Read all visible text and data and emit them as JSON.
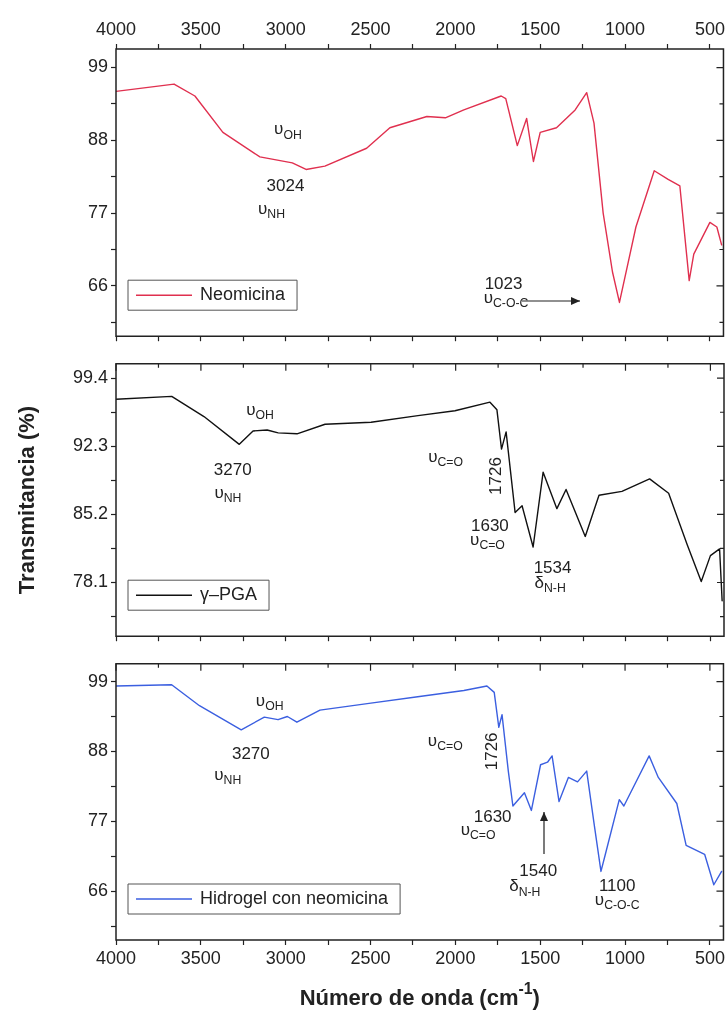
{
  "chart_data": [
    {
      "type": "line",
      "tick_labels": "y",
      "legend": "bottom left",
      "marker": "none",
      "xlim": [
        4000,
        420
      ],
      "x2lim": [
        4000,
        420
      ],
      "xticks": [
        4000,
        {
          "value": 3750,
          "label": null
        },
        3500,
        {
          "value": 3250,
          "label": null
        },
        3000,
        {
          "value": 2750,
          "label": null
        },
        2500,
        {
          "value": 2250,
          "label": null
        },
        2000,
        {
          "value": 1750,
          "label": null
        },
        1500,
        {
          "value": 1250,
          "label": null
        },
        1000,
        {
          "value": 750,
          "label": null
        },
        500
      ],
      "x2ticks": [
        4000,
        {
          "value": 3750,
          "label": null
        },
        3500,
        {
          "value": 3250,
          "label": null
        },
        3000,
        {
          "value": 2750,
          "label": null
        },
        2500,
        {
          "value": 2250,
          "label": null
        },
        2000,
        {
          "value": 1750,
          "label": null
        },
        1500,
        {
          "value": 1250,
          "label": null
        },
        1000,
        {
          "value": 750,
          "label": null
        },
        500
      ],
      "ylim": [
        58.4,
        101.8
      ],
      "yticks": [
        {
          "value": 60.5,
          "label": null
        },
        66,
        {
          "value": 71.5,
          "label": null
        },
        77,
        {
          "value": 82.5,
          "label": null
        },
        88,
        {
          "value": 93.5,
          "label": null
        },
        99
      ],
      "x": [
        4000,
        3658,
        3535,
        3370,
        3152,
        2961,
        2880,
        2769,
        2523,
        2386,
        2168,
        2059,
        1950,
        1730,
        1703,
        1635,
        1580,
        1540,
        1500,
        1404,
        1294,
        1226,
        1183,
        1129,
        1074,
        1033,
        936,
        828,
        746,
        677,
        622,
        595,
        500,
        459,
        431
      ],
      "series": [
        {
          "name": "Neomicina",
          "color": "#e0304f",
          "values": [
            95.4,
            96.5,
            94.7,
            89.2,
            85.5,
            84.6,
            83.6,
            84.1,
            86.8,
            89.9,
            91.6,
            91.4,
            92.6,
            94.7,
            94.3,
            87.2,
            91.3,
            84.8,
            89.2,
            89.9,
            92.6,
            95.2,
            90.6,
            77.0,
            68.1,
            63.5,
            74.9,
            83.4,
            82.1,
            81.1,
            66.8,
            70.8,
            75.6,
            74.9,
            72.2
          ]
        }
      ],
      "annotations": [
        "υ$_{OH}$",
        "3024",
        "υ$_{NH}$",
        "1023",
        "υ$_{C-O-C}$"
      ]
    },
    {
      "type": "line",
      "tick_labels": "y",
      "legend": "bottom left",
      "marker": "none",
      "ylabel": "Transmitancia (%)",
      "xlim": [
        4000,
        420
      ],
      "xticks": [
        4000,
        {
          "value": 3750,
          "label": null
        },
        3500,
        {
          "value": 3250,
          "label": null
        },
        3000,
        {
          "value": 2750,
          "label": null
        },
        2500,
        {
          "value": 2250,
          "label": null
        },
        2000,
        {
          "value": 1750,
          "label": null
        },
        1500,
        {
          "value": 1250,
          "label": null
        },
        1000,
        {
          "value": 750,
          "label": null
        },
        500
      ],
      "ylim": [
        72.5,
        100.9
      ],
      "yticks": [
        {
          "value": 74.55,
          "label": null
        },
        78.1,
        {
          "value": 81.65,
          "label": null
        },
        85.2,
        {
          "value": 88.75,
          "label": null
        },
        92.3,
        {
          "value": 95.85,
          "label": null
        },
        99.4
      ],
      "x": [
        4000,
        3672,
        3482,
        3274,
        3193,
        3110,
        3045,
        2934,
        2769,
        2498,
        2222,
        2004,
        1798,
        1757,
        1730,
        1703,
        1650,
        1609,
        1544,
        1485,
        1404,
        1350,
        1237,
        1156,
        1021,
        858,
        746,
        636,
        554,
        500,
        446,
        431
      ],
      "series": [
        {
          "name": "γ–PGA",
          "color": "#111111",
          "values": [
            97.2,
            97.5,
            95.4,
            92.5,
            93.9,
            94.0,
            93.7,
            93.6,
            94.6,
            94.8,
            95.5,
            96.0,
            96.9,
            96.1,
            92.0,
            93.8,
            85.4,
            86.1,
            81.8,
            89.6,
            85.8,
            87.8,
            82.9,
            87.2,
            87.6,
            88.9,
            87.4,
            82.0,
            78.2,
            80.9,
            81.6,
            76.2
          ]
        }
      ],
      "annotations": [
        "υ$_{OH}$",
        "3270",
        "υ$_{NH}$",
        "υ$_{C=O}$",
        "1726",
        "1630",
        "υ$_{C=O}$",
        "1534",
        "δ$_{N-H}$"
      ]
    },
    {
      "type": "line",
      "legend": "bottom left",
      "marker": "none",
      "xlabel": "Número de onda (cm$^{-1}$)",
      "xlim": [
        4000,
        420
      ],
      "xticks": [
        4000,
        {
          "value": 3750,
          "label": null
        },
        3500,
        {
          "value": 3250,
          "label": null
        },
        3000,
        {
          "value": 2750,
          "label": null
        },
        2500,
        {
          "value": 2250,
          "label": null
        },
        2000,
        {
          "value": 1750,
          "label": null
        },
        1500,
        {
          "value": 1250,
          "label": null
        },
        1000,
        {
          "value": 750,
          "label": null
        },
        500
      ],
      "ylim": [
        58.3,
        101.8
      ],
      "yticks": [
        {
          "value": 60.5,
          "label": null
        },
        66,
        {
          "value": 71.5,
          "label": null
        },
        77,
        {
          "value": 82.5,
          "label": null
        },
        88,
        {
          "value": 93.5,
          "label": null
        },
        99
      ],
      "x": [
        4000,
        3672,
        3508,
        3262,
        3126,
        3045,
        2990,
        2934,
        2798,
        2498,
        2222,
        1950,
        1814,
        1771,
        1744,
        1725,
        1688,
        1661,
        1593,
        1552,
        1498,
        1457,
        1430,
        1389,
        1334,
        1280,
        1226,
        1183,
        1142,
        1116,
        1034,
        1007,
        858,
        804,
        695,
        640,
        531,
        477,
        431
      ],
      "series": [
        {
          "name": "Hidrogel con neomicina",
          "color": "#3b5fe0",
          "values": [
            98.3,
            98.5,
            95.2,
            91.4,
            93.4,
            93.0,
            93.5,
            92.6,
            94.5,
            95.6,
            96.6,
            97.6,
            98.3,
            97.3,
            91.8,
            93.8,
            84.9,
            79.4,
            81.5,
            78.7,
            85.9,
            86.3,
            87.3,
            80.1,
            83.9,
            83.2,
            84.9,
            76.7,
            69.1,
            71.8,
            80.4,
            79.4,
            87.3,
            83.9,
            79.8,
            73.2,
            71.8,
            67.0,
            69.1
          ]
        }
      ],
      "annotations": [
        "υ$_{OH}$",
        "3270",
        "υ$_{NH}$",
        "υ$_{C=O}$",
        "1726",
        "1630",
        "υ$_{C=O}$",
        "1540",
        "δ$_{N-H}$",
        "1100",
        "υ$_{C-O-C}$"
      ]
    }
  ]
}
